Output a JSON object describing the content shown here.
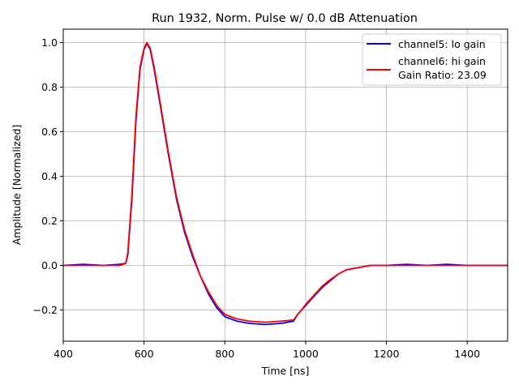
{
  "chart_data": {
    "type": "line",
    "title": "Run 1932, Norm. Pulse w/ 0.0 dB Attenuation",
    "xlabel": "Time [ns]",
    "ylabel": "Amplitude [Normalized]",
    "xlim": [
      400,
      1500
    ],
    "ylim": [
      -0.34,
      1.06
    ],
    "xticks": [
      400,
      600,
      800,
      1000,
      1200,
      1400
    ],
    "yticks": [
      -0.2,
      0.0,
      0.2,
      0.4,
      0.6,
      0.8,
      1.0
    ],
    "xtick_labels": [
      "400",
      "600",
      "800",
      "1000",
      "1200",
      "1400"
    ],
    "ytick_labels": [
      "−0.2",
      "0.0",
      "0.2",
      "0.4",
      "0.6",
      "0.8",
      "1.0"
    ],
    "grid": true,
    "legend_position": "top-right",
    "legend_extra": "Gain Ratio: 23.09",
    "series": [
      {
        "name": "channel5: lo gain",
        "color": "#0000ff",
        "x": [
          400,
          450,
          500,
          540,
          555,
          560,
          570,
          580,
          590,
          600,
          607,
          615,
          625,
          640,
          660,
          680,
          700,
          720,
          740,
          760,
          780,
          800,
          830,
          860,
          900,
          940,
          970,
          980,
          990,
          1000,
          1020,
          1040,
          1060,
          1080,
          1100,
          1130,
          1160,
          1200,
          1250,
          1300,
          1350,
          1400,
          1450,
          1500
        ],
        "y": [
          0.0,
          0.005,
          0.0,
          0.005,
          0.01,
          0.05,
          0.3,
          0.65,
          0.88,
          0.97,
          0.995,
          0.97,
          0.88,
          0.72,
          0.5,
          0.3,
          0.15,
          0.04,
          -0.05,
          -0.13,
          -0.19,
          -0.23,
          -0.25,
          -0.26,
          -0.265,
          -0.26,
          -0.25,
          -0.22,
          -0.2,
          -0.18,
          -0.14,
          -0.1,
          -0.07,
          -0.04,
          -0.02,
          -0.01,
          0.0,
          0.0,
          0.005,
          0.0,
          0.005,
          0.0,
          0.0,
          0.0
        ]
      },
      {
        "name": "channel6: hi gain",
        "color": "#ff0000",
        "x": [
          400,
          450,
          500,
          540,
          555,
          560,
          570,
          580,
          590,
          600,
          607,
          615,
          625,
          640,
          660,
          680,
          700,
          720,
          740,
          760,
          780,
          800,
          830,
          860,
          900,
          940,
          970,
          980,
          990,
          1000,
          1020,
          1040,
          1060,
          1080,
          1100,
          1130,
          1160,
          1200,
          1250,
          1300,
          1350,
          1400,
          1450,
          1500
        ],
        "y": [
          0.0,
          0.0,
          0.0,
          0.0,
          0.01,
          0.06,
          0.32,
          0.67,
          0.89,
          0.975,
          1.0,
          0.975,
          0.89,
          0.73,
          0.51,
          0.31,
          0.16,
          0.05,
          -0.05,
          -0.12,
          -0.18,
          -0.22,
          -0.24,
          -0.25,
          -0.255,
          -0.25,
          -0.245,
          -0.22,
          -0.2,
          -0.175,
          -0.135,
          -0.095,
          -0.065,
          -0.04,
          -0.02,
          -0.01,
          0.0,
          0.0,
          0.0,
          0.0,
          0.0,
          0.0,
          0.0,
          0.0
        ]
      }
    ]
  }
}
